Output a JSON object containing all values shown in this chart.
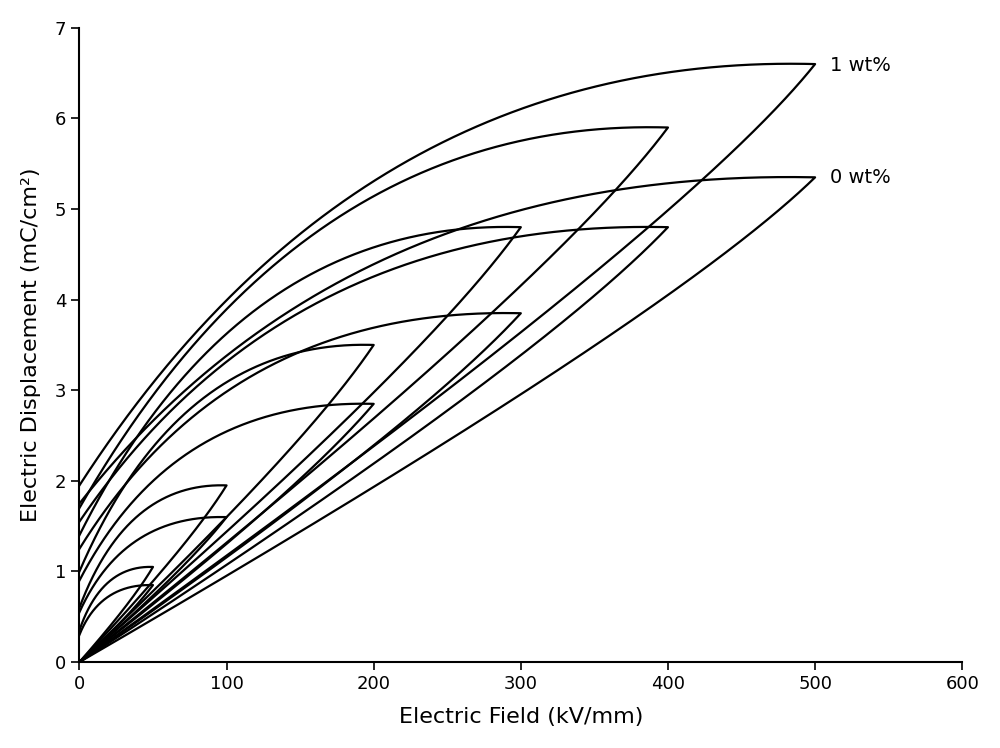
{
  "xlabel": "Electric Field (kV/mm)",
  "ylabel": "Electric Displacement (mC/cm²)",
  "xlim": [
    0,
    600
  ],
  "ylim": [
    0,
    7
  ],
  "xticks": [
    0,
    100,
    200,
    300,
    400,
    500,
    600
  ],
  "yticks": [
    0,
    1,
    2,
    3,
    4,
    5,
    6,
    7
  ],
  "label_1wt": "1 wt%",
  "label_0wt": "0 wt%",
  "ann_1wt_x": 510,
  "ann_1wt_y": 6.58,
  "ann_0wt_x": 510,
  "ann_0wt_y": 5.35,
  "linewidth": 1.6,
  "linecolor": "#000000",
  "background": "#ffffff",
  "font_label": 16,
  "font_tick": 13,
  "font_ann": 14,
  "loops_1wt": [
    {
      "E_max": 500,
      "D_max": 6.6,
      "D_yint": 1.95,
      "upper_bow": 0.38,
      "lower_bow": 0.82
    },
    {
      "E_max": 400,
      "D_max": 5.9,
      "D_yint": 1.7,
      "upper_bow": 0.38,
      "lower_bow": 0.8
    },
    {
      "E_max": 300,
      "D_max": 4.8,
      "D_yint": 1.4,
      "upper_bow": 0.36,
      "lower_bow": 0.78
    },
    {
      "E_max": 200,
      "D_max": 3.5,
      "D_yint": 1.0,
      "upper_bow": 0.34,
      "lower_bow": 0.76
    },
    {
      "E_max": 100,
      "D_max": 1.95,
      "D_yint": 0.6,
      "upper_bow": 0.32,
      "lower_bow": 0.74
    },
    {
      "E_max": 50,
      "D_max": 1.05,
      "D_yint": 0.35,
      "upper_bow": 0.3,
      "lower_bow": 0.72
    }
  ],
  "loops_0wt": [
    {
      "E_max": 500,
      "D_max": 5.35,
      "D_yint": 1.75,
      "upper_bow": 0.36,
      "lower_bow": 0.8
    },
    {
      "E_max": 400,
      "D_max": 4.8,
      "D_yint": 1.55,
      "upper_bow": 0.35,
      "lower_bow": 0.78
    },
    {
      "E_max": 300,
      "D_max": 3.85,
      "D_yint": 1.25,
      "upper_bow": 0.34,
      "lower_bow": 0.76
    },
    {
      "E_max": 200,
      "D_max": 2.85,
      "D_yint": 0.9,
      "upper_bow": 0.32,
      "lower_bow": 0.74
    },
    {
      "E_max": 100,
      "D_max": 1.6,
      "D_yint": 0.55,
      "upper_bow": 0.3,
      "lower_bow": 0.72
    },
    {
      "E_max": 50,
      "D_max": 0.85,
      "D_yint": 0.3,
      "upper_bow": 0.28,
      "lower_bow": 0.7
    }
  ]
}
